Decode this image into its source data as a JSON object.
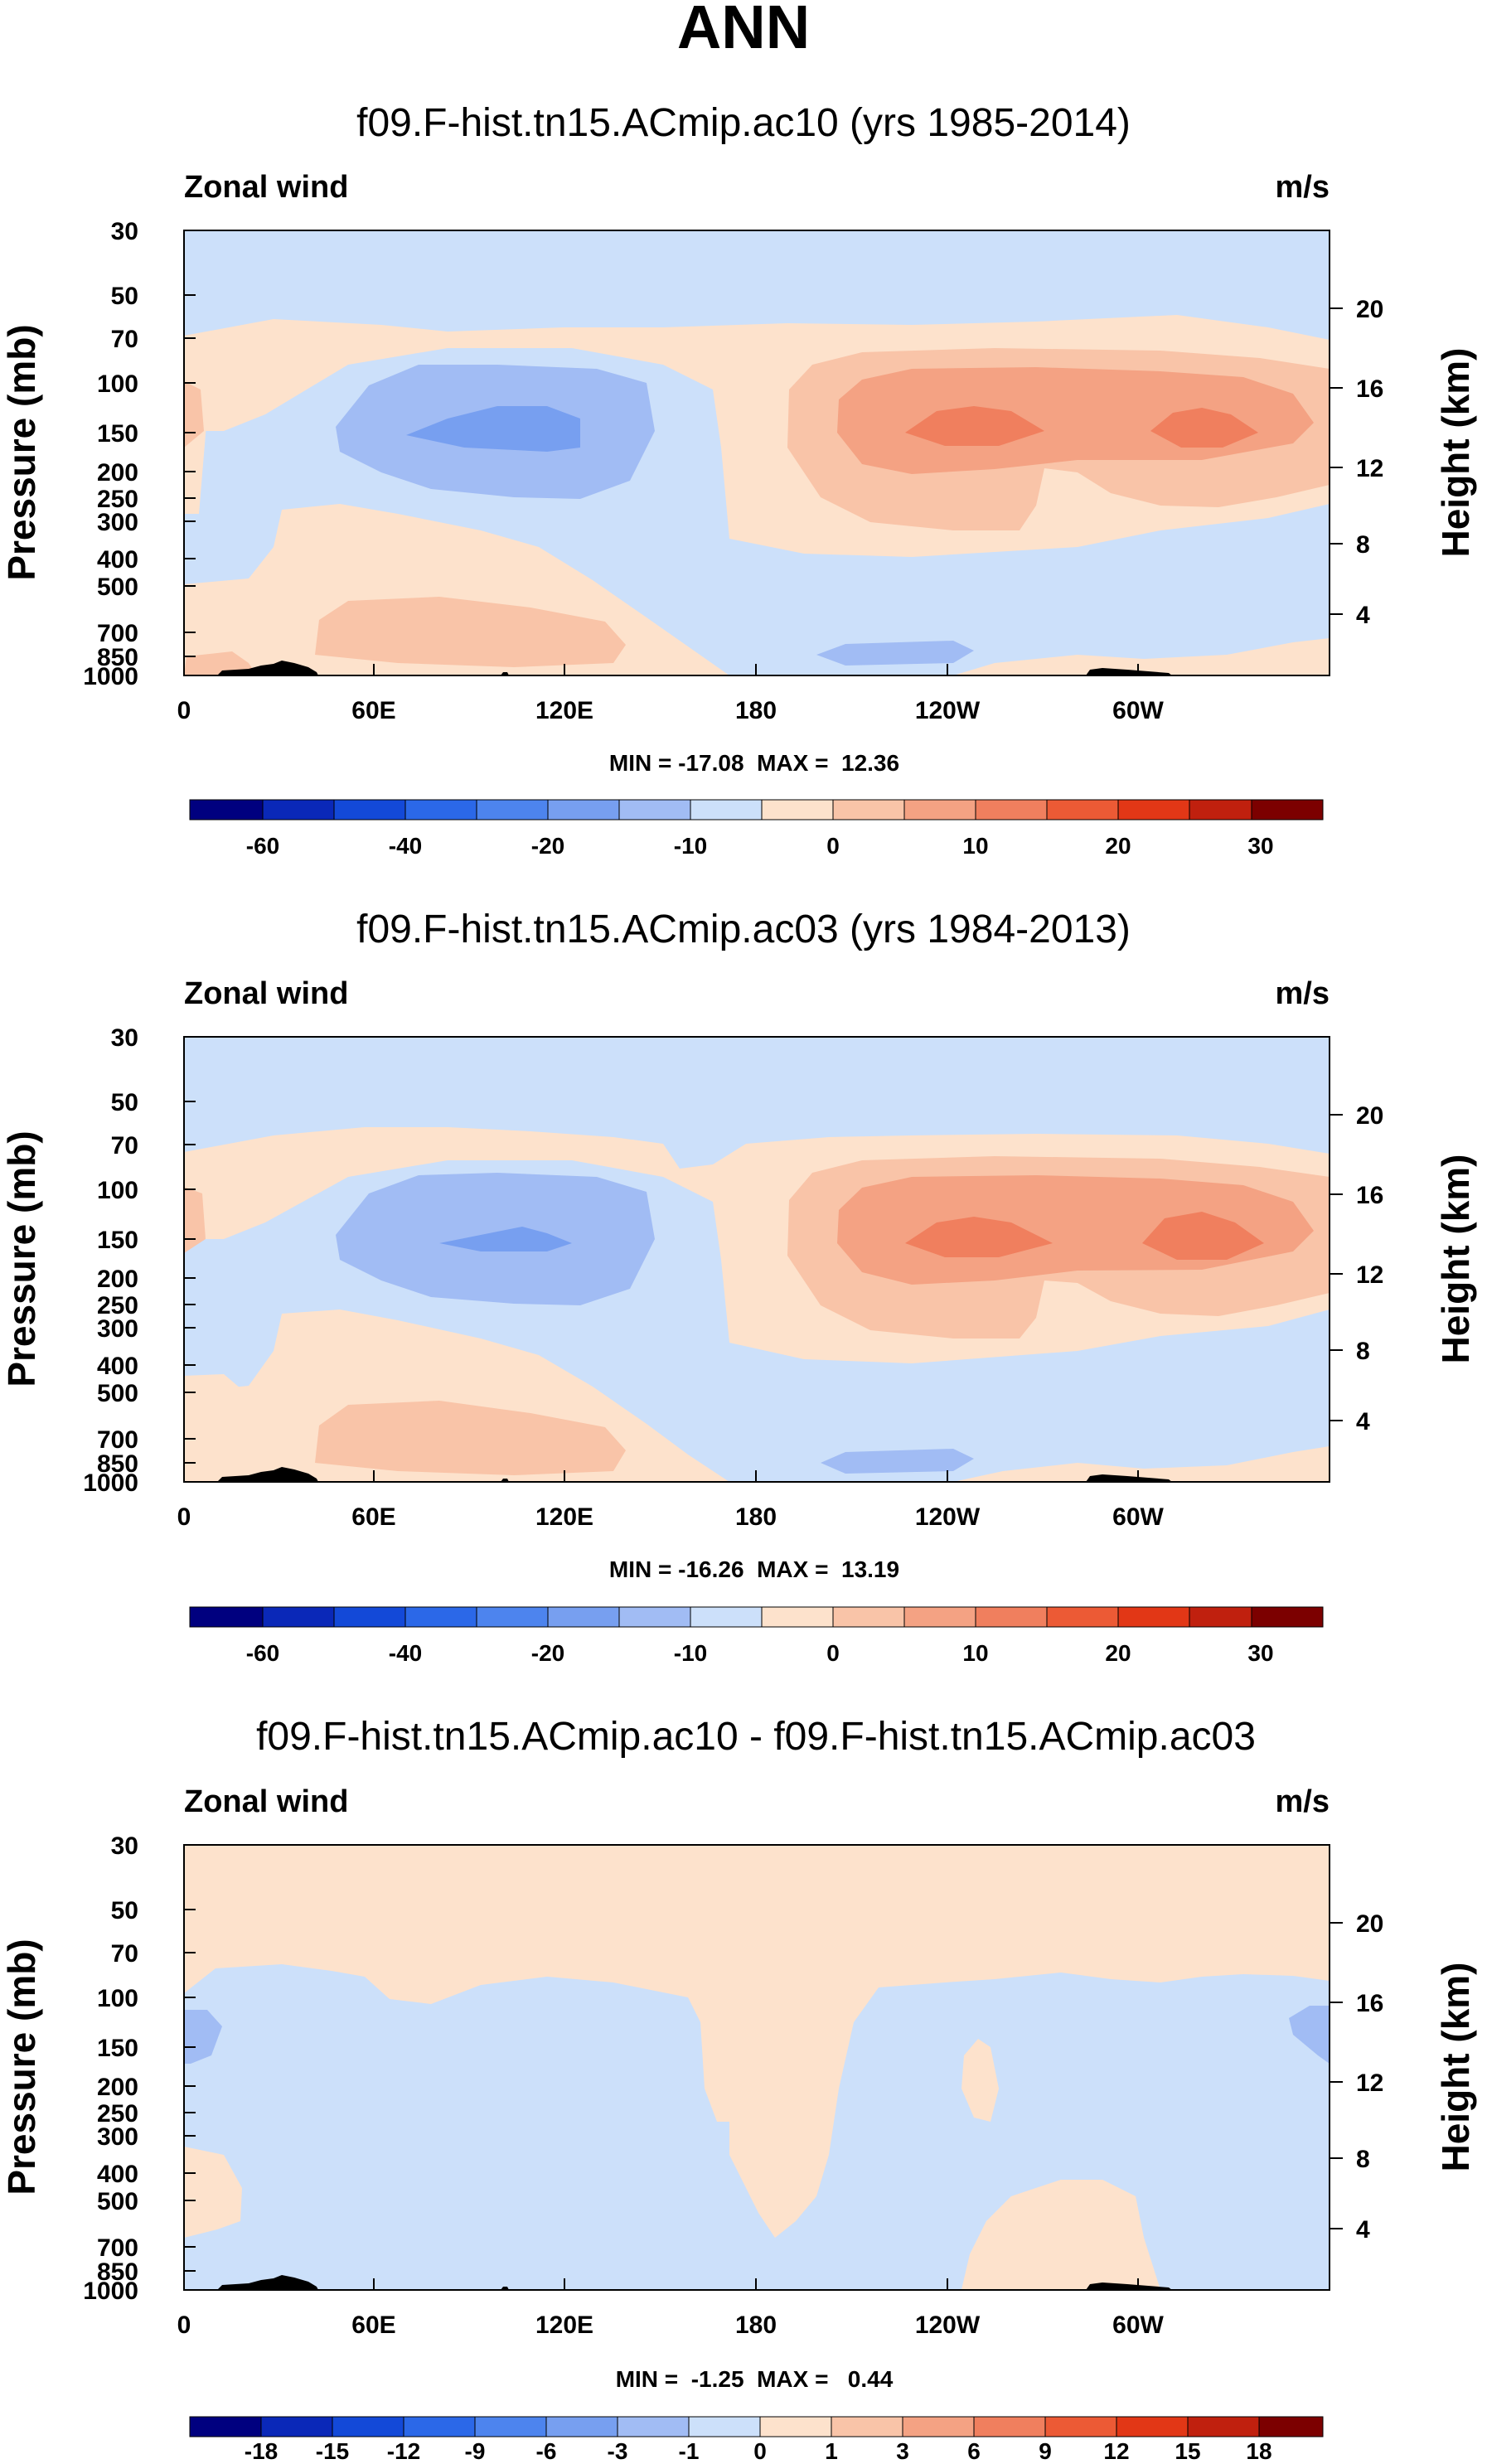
{
  "figure": {
    "title": "ANN",
    "panels": [
      {
        "title": "f09.F-hist.tn15.ACmip.ac10 (yrs 1985-2014)",
        "left_label": "Zonal wind",
        "right_label": "m/s",
        "min_max": "MIN = -17.08  MAX =  12.36",
        "colorbar_labels": [
          "-60",
          "-40",
          "-20",
          "-10",
          "0",
          "10",
          "20",
          "30"
        ]
      },
      {
        "title": "f09.F-hist.tn15.ACmip.ac03 (yrs 1984-2013)",
        "left_label": "Zonal wind",
        "right_label": "m/s",
        "min_max": "MIN = -16.26  MAX =  13.19",
        "colorbar_labels": [
          "-60",
          "-40",
          "-20",
          "-10",
          "0",
          "10",
          "20",
          "30"
        ]
      },
      {
        "title": "f09.F-hist.tn15.ACmip.ac10 - f09.F-hist.tn15.ACmip.ac03",
        "left_label": "Zonal wind",
        "right_label": "m/s",
        "min_max": "MIN =  -1.25  MAX =   0.44",
        "colorbar_labels": [
          "-18",
          "-15",
          "-12",
          "-9",
          "-6",
          "-3",
          "-1",
          "0",
          "1",
          "3",
          "6",
          "9",
          "12",
          "15",
          "18"
        ]
      }
    ]
  },
  "chart_data": [
    {
      "type": "heatmap",
      "title": "f09.F-hist.tn15.ACmip.ac10 (yrs 1985-2014)",
      "variable": "Zonal wind",
      "units": "m/s",
      "ylabel": "Pressure (mb)",
      "ylabel_right": "Height (km)",
      "x_ticks": [
        "0",
        "60E",
        "120E",
        "180",
        "120W",
        "60W"
      ],
      "y_ticks": [
        "30",
        "50",
        "70",
        "100",
        "150",
        "200",
        "250",
        "300",
        "400",
        "500",
        "700",
        "850",
        "1000"
      ],
      "y_right_ticks": [
        "20",
        "16",
        "12",
        "8",
        "4"
      ],
      "min": -17.08,
      "max": 12.36,
      "colorbar_levels": [
        -70,
        -60,
        -50,
        -40,
        -30,
        -20,
        -15,
        -10,
        -5,
        0,
        5,
        10,
        15,
        20,
        25,
        30,
        35
      ],
      "colorbar_labels": [
        "-60",
        "-40",
        "-20",
        "-10",
        "0",
        "10",
        "20",
        "30"
      ]
    },
    {
      "type": "heatmap",
      "title": "f09.F-hist.tn15.ACmip.ac03 (yrs 1984-2013)",
      "variable": "Zonal wind",
      "units": "m/s",
      "ylabel": "Pressure (mb)",
      "ylabel_right": "Height (km)",
      "x_ticks": [
        "0",
        "60E",
        "120E",
        "180",
        "120W",
        "60W"
      ],
      "y_ticks": [
        "30",
        "50",
        "70",
        "100",
        "150",
        "200",
        "250",
        "300",
        "400",
        "500",
        "700",
        "850",
        "1000"
      ],
      "y_right_ticks": [
        "20",
        "16",
        "12",
        "8",
        "4"
      ],
      "min": -16.26,
      "max": 13.19,
      "colorbar_levels": [
        -70,
        -60,
        -50,
        -40,
        -30,
        -20,
        -15,
        -10,
        -5,
        0,
        5,
        10,
        15,
        20,
        25,
        30,
        35
      ],
      "colorbar_labels": [
        "-60",
        "-40",
        "-20",
        "-10",
        "0",
        "10",
        "20",
        "30"
      ]
    },
    {
      "type": "heatmap",
      "title": "f09.F-hist.tn15.ACmip.ac10 - f09.F-hist.tn15.ACmip.ac03",
      "variable": "Zonal wind",
      "units": "m/s",
      "ylabel": "Pressure (mb)",
      "ylabel_right": "Height (km)",
      "x_ticks": [
        "0",
        "60E",
        "120E",
        "180",
        "120W",
        "60W"
      ],
      "y_ticks": [
        "30",
        "50",
        "70",
        "100",
        "150",
        "200",
        "250",
        "300",
        "400",
        "500",
        "700",
        "850",
        "1000"
      ],
      "y_right_ticks": [
        "20",
        "16",
        "12",
        "8",
        "4"
      ],
      "min": -1.25,
      "max": 0.44,
      "colorbar_levels": [
        -18,
        -15,
        -12,
        -9,
        -6,
        -3,
        -1,
        0,
        1,
        3,
        6,
        9,
        12,
        15,
        18
      ],
      "colorbar_labels": [
        "-18",
        "-15",
        "-12",
        "-9",
        "-6",
        "-3",
        "-1",
        "0",
        "1",
        "3",
        "6",
        "9",
        "12",
        "15",
        "18"
      ]
    }
  ],
  "palette": [
    "#00007f",
    "#0a28b8",
    "#1349d8",
    "#2b68e8",
    "#4d84ee",
    "#779ff0",
    "#a1bcf4",
    "#cce0fa",
    "#fde2cc",
    "#f9c4a8",
    "#f4a283",
    "#f07f5e",
    "#ec5a35",
    "#e23716",
    "#c0200e",
    "#9e1006",
    "#7c0000"
  ],
  "line_color": "#000000"
}
